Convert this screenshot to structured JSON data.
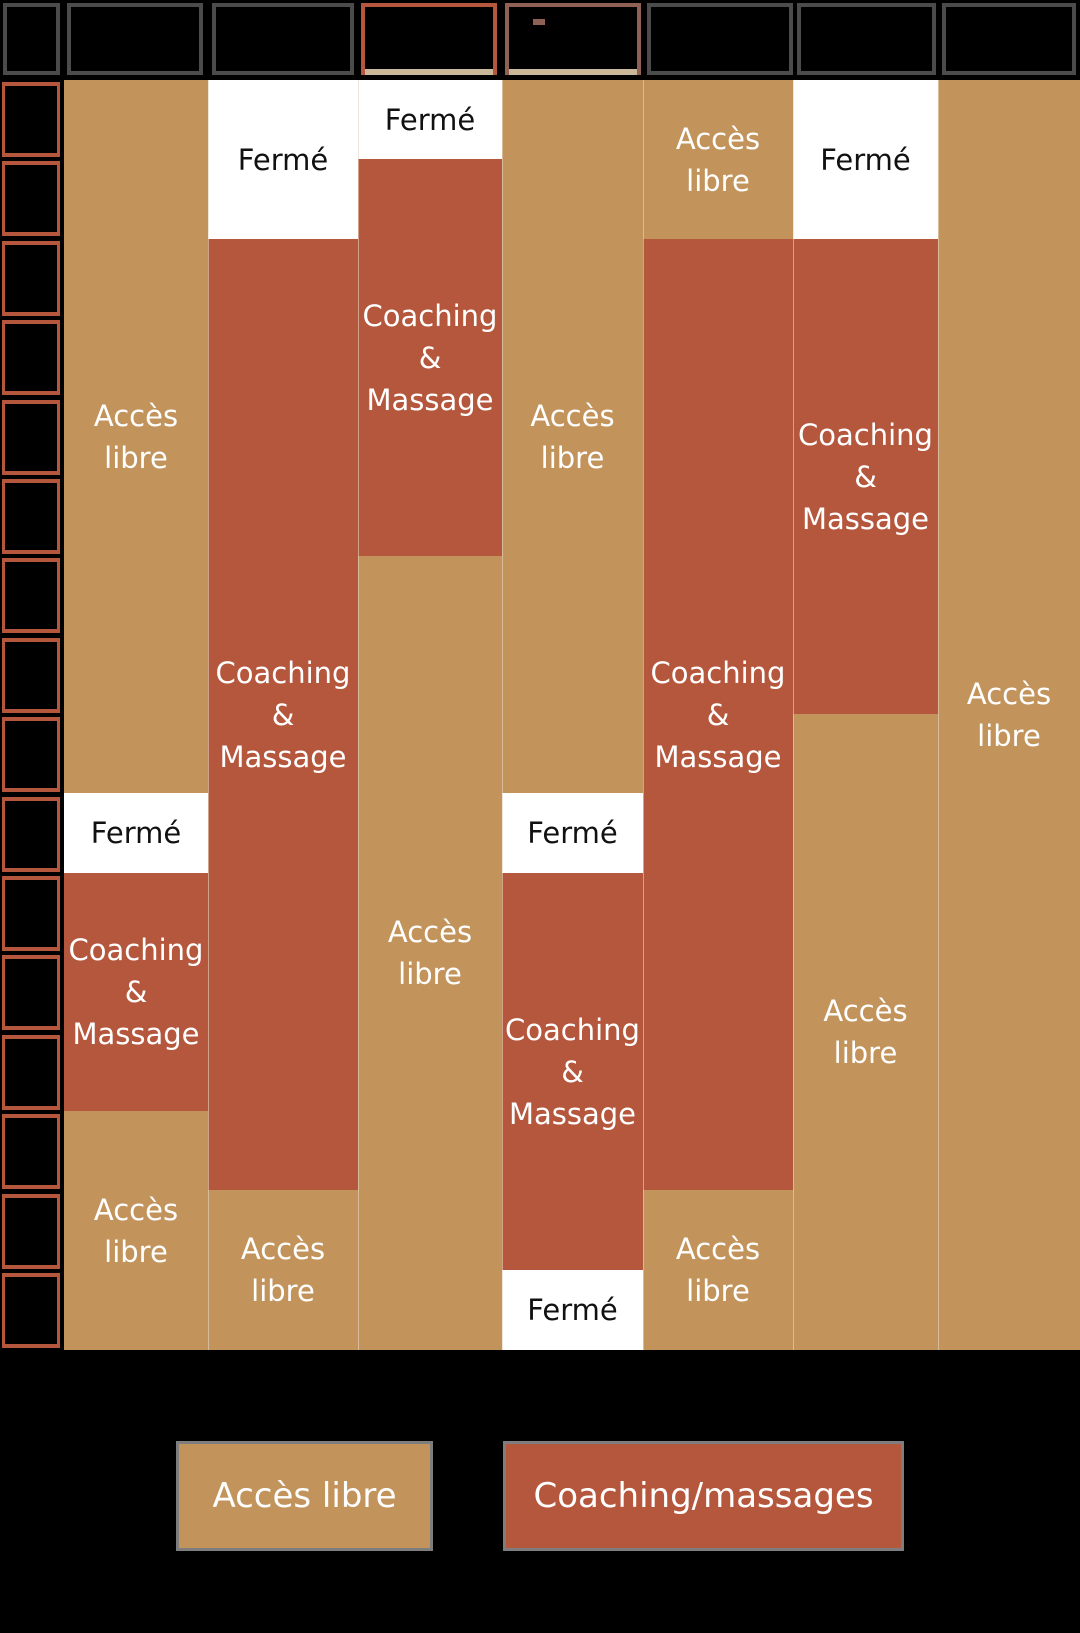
{
  "schedule": {
    "columns": [
      {
        "blocks": [
          {
            "type": "open",
            "label": "Accès\nlibre"
          },
          {
            "type": "closed",
            "label": "Fermé"
          },
          {
            "type": "coach",
            "label": "Coaching\n&\nMassage"
          },
          {
            "type": "open",
            "label": "Accès\nlibre"
          }
        ]
      },
      {
        "blocks": [
          {
            "type": "closed",
            "label": "Fermé"
          },
          {
            "type": "coach",
            "label": "Coaching\n&\nMassage"
          },
          {
            "type": "open",
            "label": "Accès\nlibre"
          }
        ]
      },
      {
        "blocks": [
          {
            "type": "closed",
            "label": "Fermé"
          },
          {
            "type": "coach",
            "label": "Coaching\n&\nMassage"
          },
          {
            "type": "open",
            "label": "Accès\nlibre"
          }
        ]
      },
      {
        "blocks": [
          {
            "type": "open",
            "label": "Accès\nlibre"
          },
          {
            "type": "closed",
            "label": "Fermé"
          },
          {
            "type": "coach",
            "label": "Coaching\n&\nMassage"
          },
          {
            "type": "closed",
            "label": "Fermé"
          }
        ]
      },
      {
        "blocks": [
          {
            "type": "open",
            "label": "Accès\nlibre"
          },
          {
            "type": "coach",
            "label": "Coaching\n&\nMassage"
          },
          {
            "type": "open",
            "label": "Accès\nlibre"
          }
        ]
      },
      {
        "blocks": [
          {
            "type": "closed",
            "label": "Fermé"
          },
          {
            "type": "coach",
            "label": "Coaching\n&\nMassage"
          },
          {
            "type": "open",
            "label": "Accès\nlibre"
          }
        ]
      },
      {
        "blocks": [
          {
            "type": "open",
            "label": "Accès\nlibre"
          }
        ]
      }
    ]
  },
  "legend": {
    "open_label": "Accès libre",
    "coach_label": "Coaching/massages"
  },
  "colors": {
    "open": "#c2945c",
    "coaching": "#b5573c",
    "closed": "#ffffff",
    "background": "#000000"
  }
}
